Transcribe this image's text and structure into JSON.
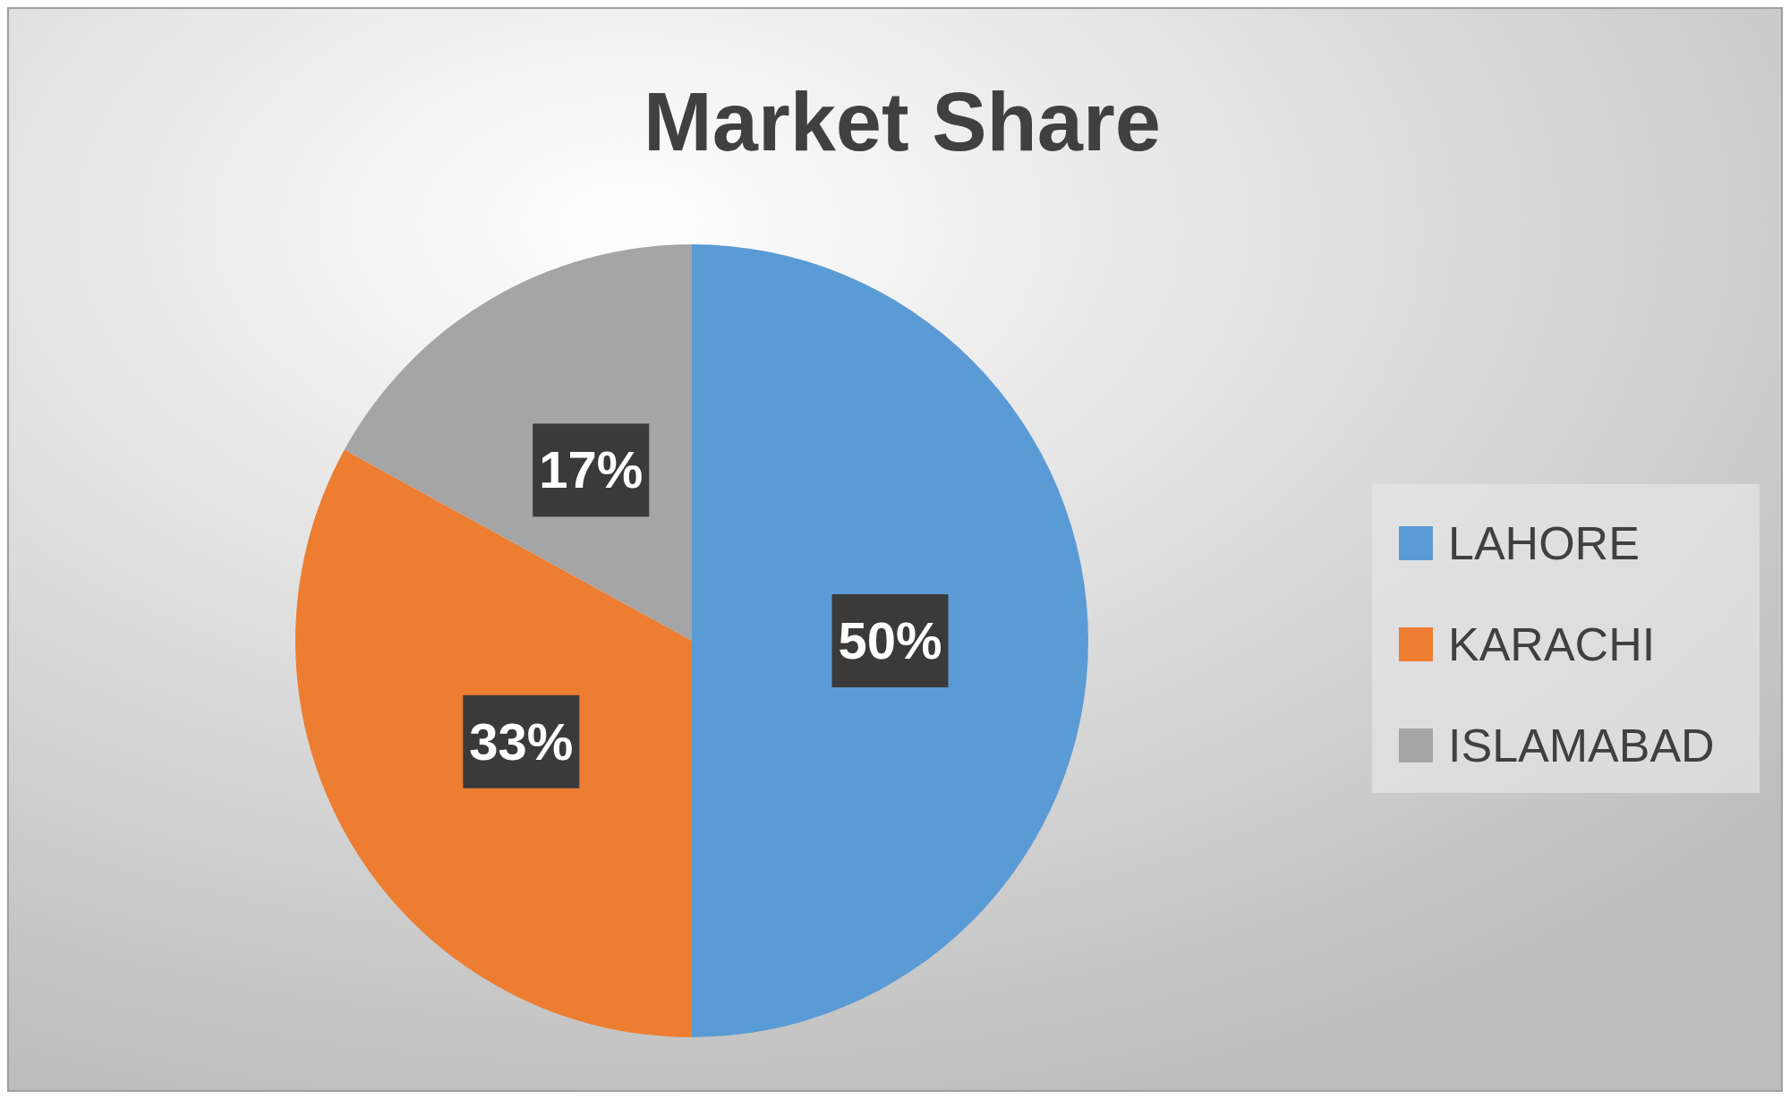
{
  "chart_data": {
    "type": "pie",
    "title": "Market Share",
    "categories": [
      "LAHORE",
      "KARACHI",
      "ISLAMABAD"
    ],
    "values": [
      50,
      33,
      17
    ],
    "colors": [
      "#5b9bd5",
      "#ed7d31",
      "#a5a5a5"
    ],
    "value_labels": [
      "50%",
      "33%",
      "17%"
    ],
    "legend": "right"
  }
}
